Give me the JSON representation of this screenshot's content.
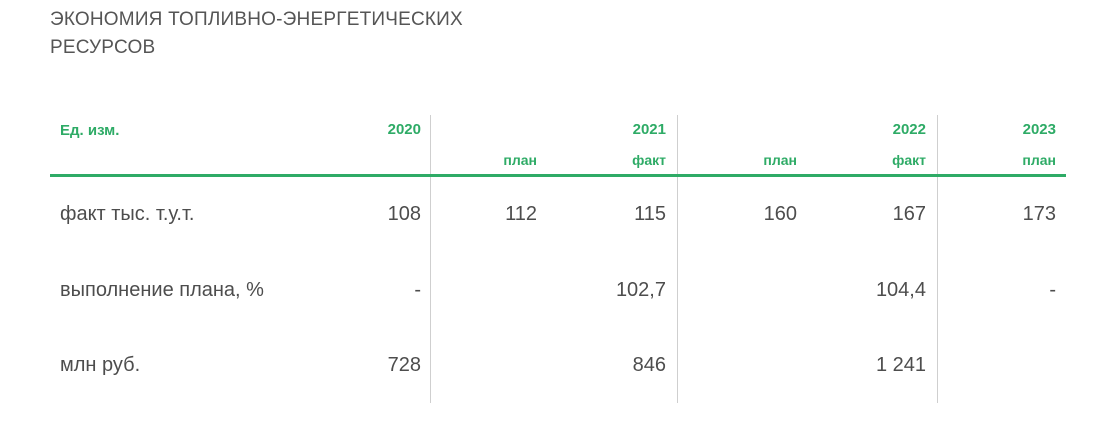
{
  "title": {
    "line1": "ЭКОНОМИЯ ТОПЛИВНО-ЭНЕРГЕТИЧЕСКИХ",
    "line2": "РЕСУРСОВ"
  },
  "header": {
    "unit_label": "Ед. изм.",
    "y2020": "2020",
    "y2021": "2021",
    "y2022": "2022",
    "y2023": "2023",
    "sub_plan_2021": "план",
    "sub_fact_2021": "факт",
    "sub_plan_2022": "план",
    "sub_fact_2022": "факт",
    "sub_plan_2023": "план"
  },
  "rows": [
    {
      "label": "факт тыс. т.у.т.",
      "v2020": "108",
      "plan2021": "112",
      "fact2021": "115",
      "plan2022": "160",
      "fact2022": "167",
      "plan2023": "173"
    },
    {
      "label": "выполнение плана, %",
      "v2020": "-",
      "plan2021": "",
      "fact2021": "102,7",
      "plan2022": "",
      "fact2022": "104,4",
      "plan2023": "-"
    },
    {
      "label": "млн руб.",
      "v2020": "728",
      "plan2021": "",
      "fact2021": "846",
      "plan2022": "",
      "fact2022": "1 241",
      "plan2023": ""
    }
  ],
  "colors": {
    "accent": "#2eab66",
    "text": "#4d4d4d",
    "divider": "#cfcfcf"
  }
}
